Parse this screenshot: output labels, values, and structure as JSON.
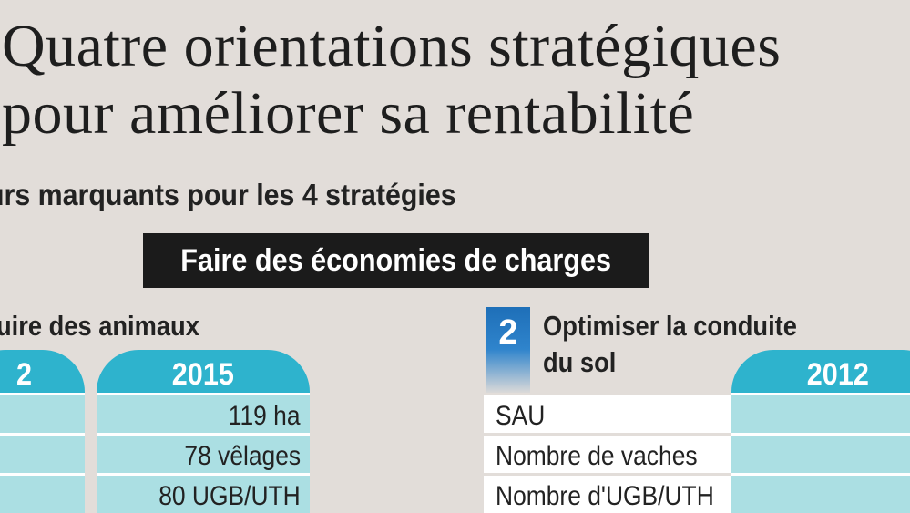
{
  "title": {
    "line1": "Quatre orientations stratégiques",
    "line2": "pour améliorer sa rentabilité"
  },
  "subtitle": "urs marquants pour les 4 stratégies",
  "banner": "Faire des économies de charges",
  "left_section": {
    "heading": "uire des animaux",
    "col_prev_label": "2",
    "col_2015_label": "2015",
    "col_2015_values": [
      "119 ha",
      "78 vêlages",
      "80 UGB/UTH"
    ]
  },
  "right_section": {
    "badge": "2",
    "heading_line1": "Optimiser la conduite",
    "heading_line2": "du sol",
    "col_2012_label": "2012",
    "rows": [
      "SAU",
      "Nombre de vaches",
      "Nombre d'UGB/UTH"
    ]
  },
  "colors": {
    "background": "#e2ddd9",
    "tab_teal": "#2eb3cd",
    "cell_teal": "#abdfe3",
    "banner_black": "#1b1b1b",
    "badge_blue": "#1e6fb8"
  }
}
